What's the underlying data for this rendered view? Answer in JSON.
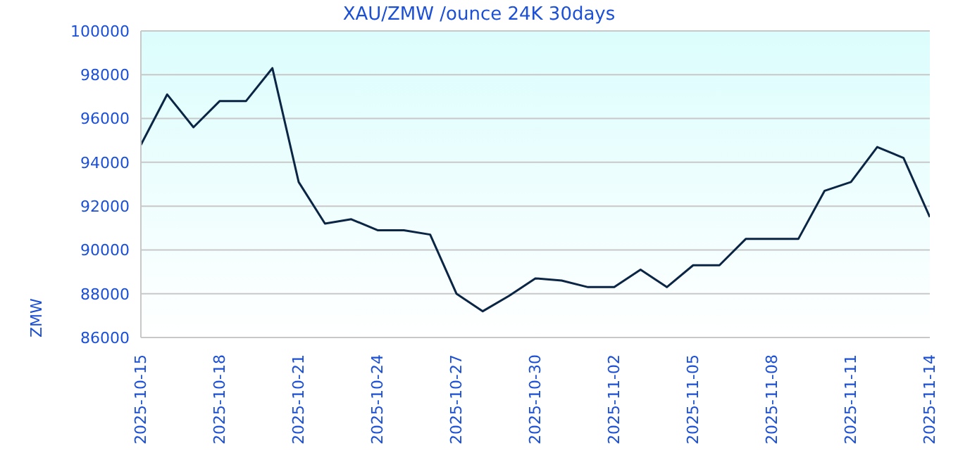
{
  "chart_data": {
    "type": "line",
    "title": "XAU/ZMW /ounce 24K 30days",
    "ylabel": "ZMW",
    "x": [
      "2025-10-15",
      "2025-10-16",
      "2025-10-17",
      "2025-10-18",
      "2025-10-19",
      "2025-10-20",
      "2025-10-21",
      "2025-10-22",
      "2025-10-23",
      "2025-10-24",
      "2025-10-25",
      "2025-10-26",
      "2025-10-27",
      "2025-10-28",
      "2025-10-29",
      "2025-10-30",
      "2025-10-31",
      "2025-11-01",
      "2025-11-02",
      "2025-11-03",
      "2025-11-04",
      "2025-11-05",
      "2025-11-06",
      "2025-11-07",
      "2025-11-08",
      "2025-11-09",
      "2025-11-10",
      "2025-11-11",
      "2025-11-12",
      "2025-11-13",
      "2025-11-14"
    ],
    "series": [
      {
        "color": "#0b2545",
        "values": [
          94800,
          97100,
          95600,
          96800,
          96800,
          98300,
          93100,
          91200,
          91400,
          90900,
          90900,
          90700,
          88000,
          87200,
          87900,
          88700,
          88600,
          88300,
          88300,
          89100,
          88300,
          89300,
          89300,
          90500,
          90500,
          90500,
          92700,
          93100,
          94700,
          94200,
          91500
        ]
      }
    ],
    "xlim": [
      "2025-10-15",
      "2025-11-14"
    ],
    "xticks": [
      "2025-10-15",
      "2025-10-18",
      "2025-10-21",
      "2025-10-24",
      "2025-10-27",
      "2025-10-30",
      "2025-11-02",
      "2025-11-05",
      "2025-11-08",
      "2025-11-11",
      "2025-11-14"
    ],
    "ylim": [
      86000,
      100000
    ],
    "yticks": [
      86000,
      88000,
      90000,
      92000,
      94000,
      96000,
      98000,
      100000
    ],
    "grid": "y",
    "legend": false,
    "marker": "none",
    "line_style": "solid"
  }
}
